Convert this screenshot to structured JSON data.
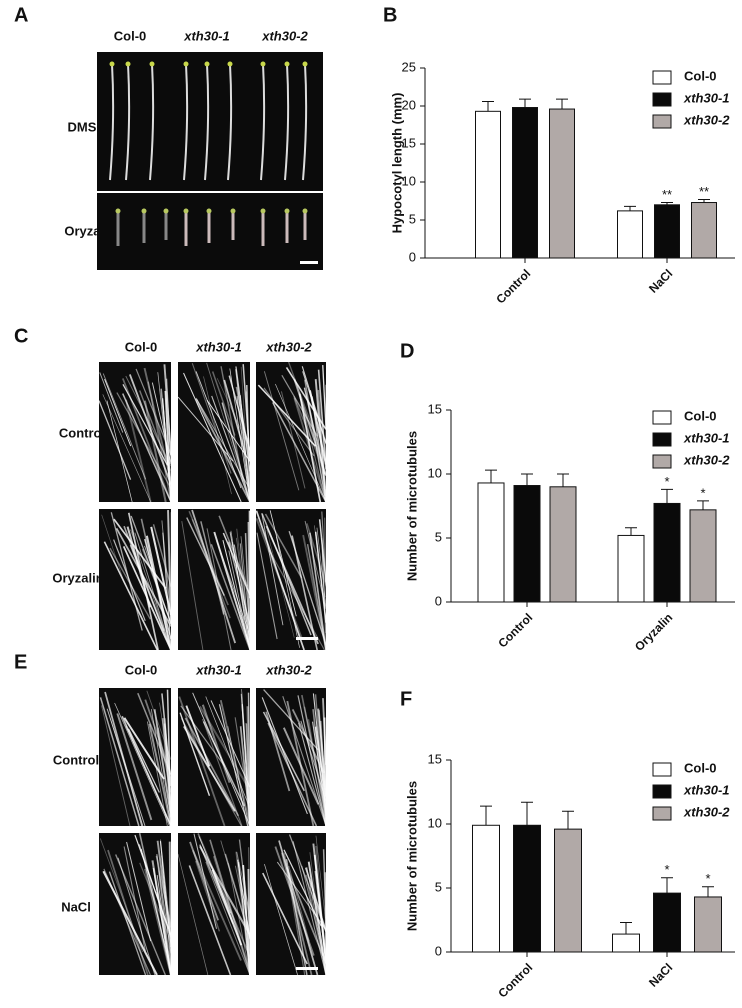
{
  "panel_labels": [
    "A",
    "B",
    "C",
    "D",
    "E",
    "F"
  ],
  "image_panels": [
    {
      "columns": [
        "Col-0",
        "xth30-1",
        "xth30-2"
      ],
      "rows": [
        "DMSO",
        "Oryzalin"
      ]
    },
    {
      "columns": [
        "Col-0",
        "xth30-1",
        "xth30-2"
      ],
      "rows": [
        "Control",
        "Oryzalin"
      ]
    },
    {
      "columns": [
        "Col-0",
        "xth30-1",
        "xth30-2"
      ],
      "rows": [
        "Control",
        "NaCl"
      ]
    }
  ],
  "chart_data": [
    {
      "type": "bar",
      "y_label": "Hypocotyl length (mm)",
      "categories": [
        "Control",
        "NaCl"
      ],
      "ylim": [
        0,
        25
      ],
      "yticks": [
        0,
        5,
        10,
        15,
        20,
        25
      ],
      "legend": "upper right",
      "series": [
        {
          "name": "Col-0",
          "color": "#ffffff",
          "values": [
            19.3,
            6.2
          ],
          "errors": [
            1.3,
            0.6
          ],
          "significance": [
            null,
            null
          ]
        },
        {
          "name": "xth30-1",
          "color": "#0a0a0a",
          "values": [
            19.8,
            7.0
          ],
          "errors": [
            1.1,
            0.3
          ],
          "significance": [
            null,
            "**"
          ]
        },
        {
          "name": "xth30-2",
          "color": "#b1a9a7",
          "values": [
            19.6,
            7.3
          ],
          "errors": [
            1.3,
            0.4
          ],
          "significance": [
            null,
            "**"
          ]
        }
      ]
    },
    {
      "type": "bar",
      "y_label": "Number of microtubules",
      "categories": [
        "Control",
        "Oryzalin"
      ],
      "ylim": [
        0,
        15
      ],
      "yticks": [
        0,
        5,
        10,
        15
      ],
      "legend": "upper right",
      "series": [
        {
          "name": "Col-0",
          "color": "#ffffff",
          "values": [
            9.3,
            5.2
          ],
          "errors": [
            1.0,
            0.6
          ],
          "significance": [
            null,
            null
          ]
        },
        {
          "name": "xth30-1",
          "color": "#0a0a0a",
          "values": [
            9.1,
            7.7
          ],
          "errors": [
            0.9,
            1.1
          ],
          "significance": [
            null,
            "*"
          ]
        },
        {
          "name": "xth30-2",
          "color": "#b1a9a7",
          "values": [
            9.0,
            7.2
          ],
          "errors": [
            1.0,
            0.7
          ],
          "significance": [
            null,
            "*"
          ]
        }
      ]
    },
    {
      "type": "bar",
      "y_label": "Number of microtubules",
      "categories": [
        "Control",
        "NaCl"
      ],
      "ylim": [
        0,
        15
      ],
      "yticks": [
        0,
        5,
        10,
        15
      ],
      "legend": "upper right",
      "series": [
        {
          "name": "Col-0",
          "color": "#ffffff",
          "values": [
            9.9,
            1.4
          ],
          "errors": [
            1.5,
            0.9
          ],
          "significance": [
            null,
            null
          ]
        },
        {
          "name": "xth30-1",
          "color": "#0a0a0a",
          "values": [
            9.9,
            4.6
          ],
          "errors": [
            1.8,
            1.2
          ],
          "significance": [
            null,
            "*"
          ]
        },
        {
          "name": "xth30-2",
          "color": "#b1a9a7",
          "values": [
            9.6,
            4.3
          ],
          "errors": [
            1.4,
            0.8
          ],
          "significance": [
            null,
            "*"
          ]
        }
      ]
    }
  ]
}
